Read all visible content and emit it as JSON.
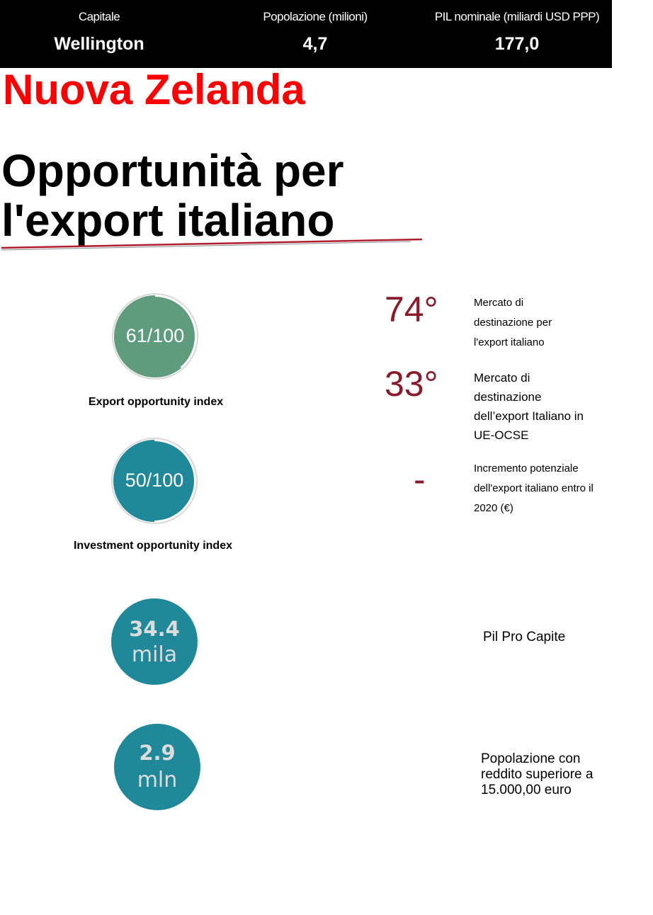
{
  "header": {
    "capital_label": "Capitale",
    "capital_value": "Wellington",
    "population_label": "Popolazione (milioni)",
    "population_value": "4,7",
    "gdp_label": "PIL nominale (miliardi USD PPP)",
    "gdp_value": "177,0"
  },
  "country": "Nuova Zelanda",
  "section_title": "Opportunità per l'export italiano",
  "gauges": [
    {
      "value_text": "61/100",
      "value": 61,
      "max": 100,
      "caption": "Export opportunity index",
      "color": "#5f9c7d"
    },
    {
      "value_text": "50/100",
      "value": 50,
      "max": 100,
      "caption": "Investment opportunity index",
      "color": "#1f8899"
    }
  ],
  "rankings": [
    {
      "rank": "74°",
      "description": "Mercato di destinazione per l'export italiano"
    },
    {
      "rank": "33°",
      "description": "Mercato di destinazione dell’export Italiano in UE-OCSE"
    },
    {
      "rank": "-",
      "description": "Incremento potenziale dell'export italiano entro il 2020 (€)"
    }
  ],
  "stats": [
    {
      "number": "34.4",
      "unit": "mila",
      "description": "Pil Pro Capite"
    },
    {
      "number": "2.9",
      "unit": "mln",
      "description": "Popolazione con reddito superiore a 15.000,00 euro"
    }
  ],
  "colors": {
    "header_bg": "#000000",
    "country_title": "#ff0000",
    "rank": "#8b1a2b",
    "gauge_track": "#d9d9d9",
    "stat_circle": "#1f8899",
    "underline": "#b01c2e"
  }
}
